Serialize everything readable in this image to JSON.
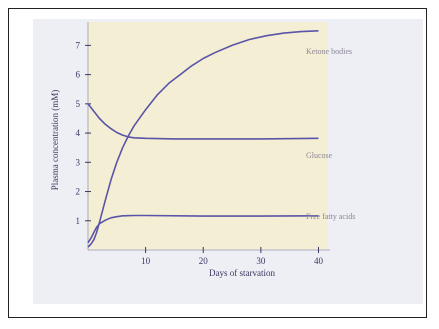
{
  "chart_data": {
    "type": "line",
    "title": "",
    "xlabel": "Days of starvation",
    "ylabel": "Plasma concentration (mM)",
    "xlim": [
      0,
      42
    ],
    "ylim": [
      0,
      7.8
    ],
    "x_ticks": [
      10,
      20,
      30,
      40
    ],
    "y_ticks": [
      1,
      2,
      3,
      4,
      5,
      6,
      7
    ],
    "grid": false,
    "line_color": "#5a54a8",
    "series": [
      {
        "name": "Ketone bodies",
        "points": [
          [
            0,
            0.1
          ],
          [
            0.5,
            0.2
          ],
          [
            1,
            0.35
          ],
          [
            1.5,
            0.6
          ],
          [
            2,
            0.95
          ],
          [
            3,
            1.7
          ],
          [
            4,
            2.4
          ],
          [
            5,
            3.0
          ],
          [
            6,
            3.5
          ],
          [
            7,
            3.9
          ],
          [
            8,
            4.25
          ],
          [
            10,
            4.8
          ],
          [
            12,
            5.3
          ],
          [
            14,
            5.7
          ],
          [
            16,
            6.0
          ],
          [
            18,
            6.3
          ],
          [
            20,
            6.55
          ],
          [
            22,
            6.75
          ],
          [
            25,
            7.0
          ],
          [
            28,
            7.2
          ],
          [
            31,
            7.33
          ],
          [
            34,
            7.42
          ],
          [
            37,
            7.47
          ],
          [
            40,
            7.5
          ]
        ]
      },
      {
        "name": "Glucose",
        "points": [
          [
            0,
            5.0
          ],
          [
            1,
            4.75
          ],
          [
            2,
            4.5
          ],
          [
            3,
            4.3
          ],
          [
            4,
            4.15
          ],
          [
            5,
            4.02
          ],
          [
            6,
            3.93
          ],
          [
            7,
            3.87
          ],
          [
            8,
            3.84
          ],
          [
            10,
            3.82
          ],
          [
            15,
            3.8
          ],
          [
            20,
            3.8
          ],
          [
            30,
            3.8
          ],
          [
            40,
            3.82
          ]
        ]
      },
      {
        "name": "Free fatty acids",
        "points": [
          [
            0,
            0.25
          ],
          [
            0.5,
            0.4
          ],
          [
            1,
            0.6
          ],
          [
            1.5,
            0.78
          ],
          [
            2,
            0.9
          ],
          [
            3,
            1.02
          ],
          [
            4,
            1.1
          ],
          [
            5,
            1.14
          ],
          [
            6,
            1.17
          ],
          [
            8,
            1.18
          ],
          [
            10,
            1.18
          ],
          [
            20,
            1.16
          ],
          [
            30,
            1.16
          ],
          [
            40,
            1.17
          ]
        ]
      }
    ]
  }
}
